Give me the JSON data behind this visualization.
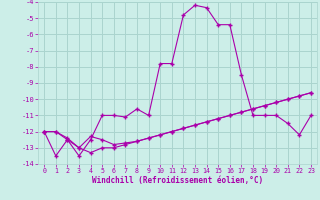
{
  "xlabel": "Windchill (Refroidissement éolien,°C)",
  "bg_color": "#cceee8",
  "grid_color": "#aad4ce",
  "line_color": "#aa00aa",
  "xlim": [
    -0.5,
    23.5
  ],
  "ylim": [
    -14,
    -4
  ],
  "yticks": [
    -14,
    -13,
    -12,
    -11,
    -10,
    -9,
    -8,
    -7,
    -6,
    -5,
    -4
  ],
  "xticks": [
    0,
    1,
    2,
    3,
    4,
    5,
    6,
    7,
    8,
    9,
    10,
    11,
    12,
    13,
    14,
    15,
    16,
    17,
    18,
    19,
    20,
    21,
    22,
    23
  ],
  "series1_x": [
    0,
    1,
    2,
    3,
    4,
    5,
    6,
    7,
    8,
    9,
    10,
    11,
    12,
    13,
    14,
    15,
    16,
    17,
    18,
    19,
    20,
    21,
    22,
    23
  ],
  "series1_y": [
    -12.0,
    -12.0,
    -12.5,
    -13.5,
    -12.5,
    -11.0,
    -11.0,
    -11.1,
    -10.6,
    -11.0,
    -7.8,
    -7.8,
    -4.8,
    -4.2,
    -4.35,
    -5.4,
    -5.4,
    -8.5,
    -11.0,
    -11.0,
    -11.0,
    -11.5,
    -12.2,
    -11.0
  ],
  "series2_x": [
    0,
    1,
    2,
    3,
    4,
    5,
    6,
    7,
    8,
    9,
    10,
    11,
    12,
    13,
    14,
    15,
    16,
    17,
    18,
    19,
    20,
    21,
    22,
    23
  ],
  "series2_y": [
    -12.0,
    -12.0,
    -12.4,
    -13.0,
    -12.3,
    -12.5,
    -12.8,
    -12.7,
    -12.6,
    -12.4,
    -12.2,
    -12.0,
    -11.8,
    -11.6,
    -11.4,
    -11.2,
    -11.0,
    -10.8,
    -10.6,
    -10.4,
    -10.2,
    -10.0,
    -9.8,
    -9.6
  ],
  "series3_x": [
    0,
    1,
    2,
    3,
    4,
    5,
    6,
    7,
    8,
    9,
    10,
    11,
    12,
    13,
    14,
    15,
    16,
    17,
    18,
    19,
    20,
    21,
    22,
    23
  ],
  "series3_y": [
    -12.0,
    -13.5,
    -12.5,
    -13.0,
    -13.3,
    -13.0,
    -13.0,
    -12.8,
    -12.6,
    -12.4,
    -12.2,
    -12.0,
    -11.8,
    -11.6,
    -11.4,
    -11.2,
    -11.0,
    -10.8,
    -10.6,
    -10.4,
    -10.2,
    -10.0,
    -9.8,
    -9.6
  ]
}
